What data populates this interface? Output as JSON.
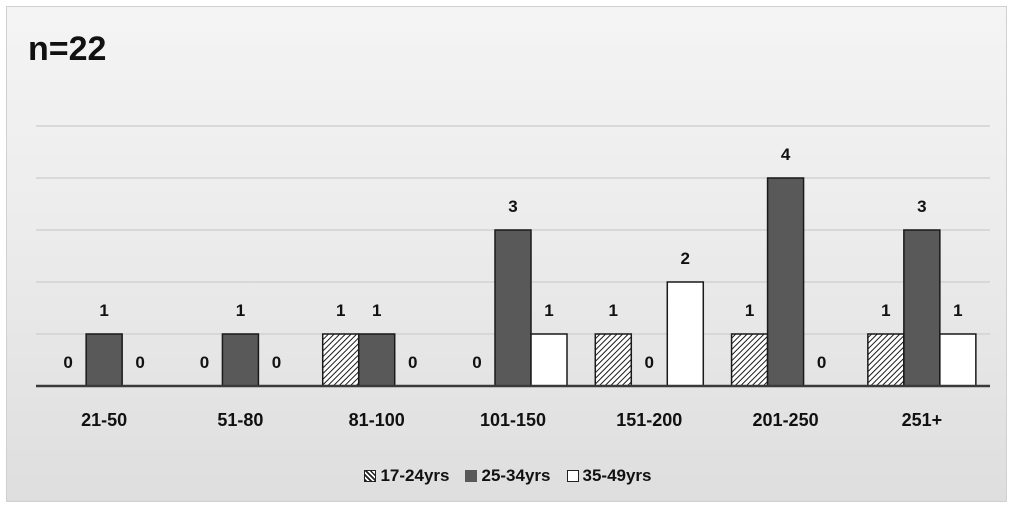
{
  "chart_data": {
    "type": "bar",
    "title": "n=22",
    "xlabel": "",
    "ylabel": "",
    "ylim": [
      0,
      5
    ],
    "grid": true,
    "legend_position": "bottom",
    "categories": [
      "21-50",
      "51-80",
      "81-100",
      "101-150",
      "151-200",
      "201-250",
      "251+"
    ],
    "series": [
      {
        "name": "17-24yrs",
        "values": [
          0,
          0,
          1,
          0,
          1,
          1,
          1
        ],
        "fill": "pattern",
        "color": "#ffffff"
      },
      {
        "name": "25-34yrs",
        "values": [
          1,
          1,
          1,
          3,
          0,
          4,
          3
        ],
        "fill": "solid",
        "color": "#595959"
      },
      {
        "name": "35-49yrs",
        "values": [
          0,
          0,
          0,
          1,
          2,
          0,
          1
        ],
        "fill": "solid",
        "color": "#ffffff"
      }
    ],
    "legend": {
      "markers": [
        "▨",
        "■",
        "□"
      ]
    }
  }
}
